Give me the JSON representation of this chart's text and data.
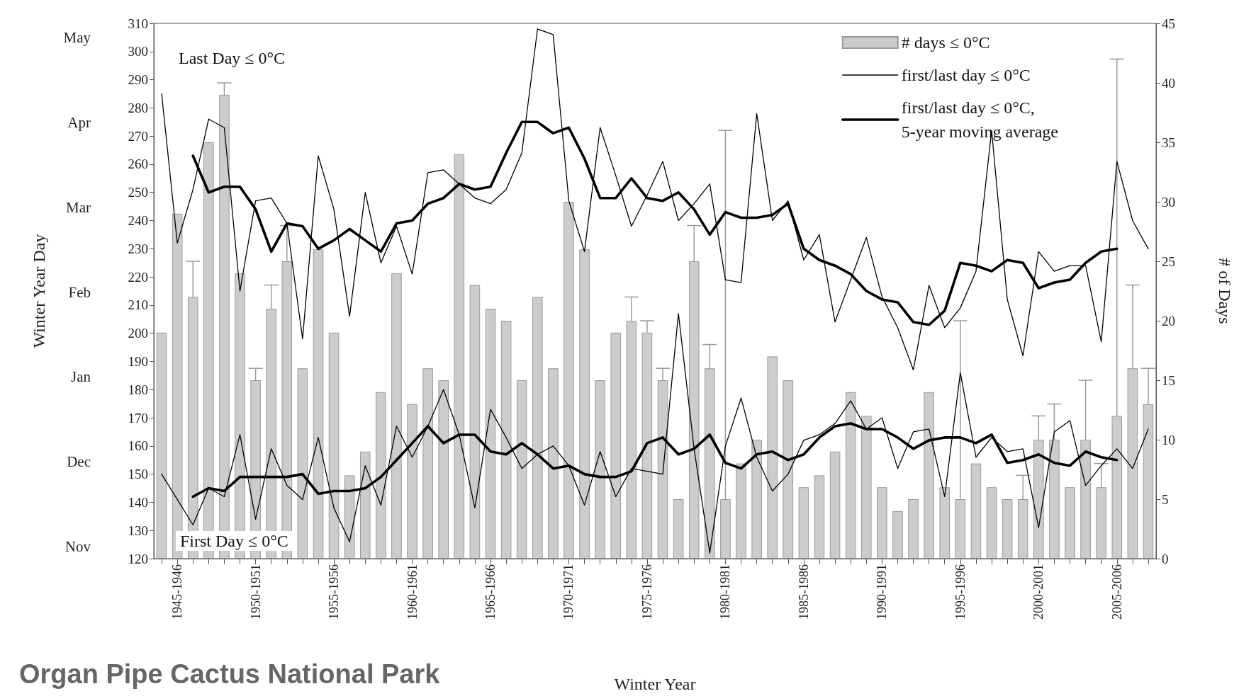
{
  "chart_data": {
    "type": "bar",
    "title": "Organ Pipe Cactus National Park",
    "xlabel": "Winter Year",
    "ylabel": "Winter Year Day",
    "y2label": "# of Days",
    "annotations": [
      "Last Day ≤ 0°C",
      "First Day ≤ 0°C",
      "May",
      "Apr",
      "Mar",
      "Feb",
      "Jan",
      "Dec",
      "Nov"
    ],
    "categories": [
      null,
      "1945-1946",
      null,
      null,
      null,
      null,
      "1950-1951",
      null,
      null,
      null,
      null,
      "1955-1956",
      null,
      null,
      null,
      null,
      "1960-1961",
      null,
      null,
      null,
      null,
      "1965-1966",
      null,
      null,
      null,
      null,
      "1970-1971",
      null,
      null,
      null,
      null,
      "1975-1976",
      null,
      null,
      null,
      null,
      "1980-1981",
      null,
      null,
      null,
      null,
      "1985-1986",
      null,
      null,
      null,
      null,
      "1990-1991",
      null,
      null,
      null,
      null,
      "1995-1996",
      null,
      null,
      null,
      null,
      "2000-2001",
      null,
      null,
      null,
      null,
      "2005-2006",
      null,
      null
    ],
    "series": [
      {
        "name": "# days ≤ 0°C",
        "axis": "y2",
        "color": "#cccccc",
        "values": [
          19,
          29,
          22,
          35,
          39,
          24,
          15,
          21,
          25,
          16,
          26,
          19,
          7,
          9,
          14,
          24,
          13,
          16,
          15,
          34,
          23,
          21,
          20,
          15,
          22,
          16,
          30,
          26,
          15,
          19,
          20,
          19,
          15,
          5,
          25,
          16,
          5,
          8,
          10,
          17,
          15,
          6,
          7,
          9,
          14,
          12,
          6,
          4,
          5,
          14,
          6,
          5,
          8,
          6,
          5,
          5,
          10,
          10,
          6,
          10,
          6,
          12,
          16,
          13
        ],
        "errors": [
          null,
          null,
          [
            22,
            25
          ],
          null,
          [
            39,
            40
          ],
          null,
          [
            15,
            16
          ],
          [
            21,
            23
          ],
          [
            25,
            28
          ],
          null,
          null,
          null,
          null,
          null,
          null,
          null,
          null,
          null,
          null,
          null,
          null,
          null,
          null,
          null,
          null,
          null,
          null,
          null,
          null,
          null,
          [
            20,
            22
          ],
          [
            19,
            20
          ],
          [
            15,
            16
          ],
          null,
          [
            25,
            28
          ],
          [
            16,
            18
          ],
          [
            5,
            36
          ],
          null,
          null,
          null,
          null,
          null,
          null,
          null,
          null,
          null,
          null,
          null,
          null,
          null,
          null,
          [
            5,
            20
          ],
          null,
          null,
          null,
          [
            5,
            7
          ],
          [
            10,
            12
          ],
          [
            10,
            13
          ],
          null,
          [
            10,
            15
          ],
          [
            6,
            8
          ],
          [
            12,
            42
          ],
          [
            16,
            23
          ],
          [
            13,
            16
          ]
        ]
      },
      {
        "name": "first/last day ≤ 0°C",
        "type": "line",
        "color": "#000000",
        "values": [
          285,
          232,
          251,
          276,
          273,
          215,
          247,
          248,
          239,
          198,
          263,
          244,
          206,
          250,
          225,
          238,
          221,
          257,
          258,
          253,
          248,
          246,
          251,
          264,
          308,
          306,
          247,
          229,
          273,
          256,
          238,
          249,
          261,
          240,
          246,
          253,
          219,
          218,
          278,
          240,
          247,
          226,
          235,
          204,
          219,
          234,
          213,
          202,
          187,
          217,
          202,
          209,
          222,
          272,
          212,
          192,
          229,
          222,
          224,
          224,
          197,
          261,
          240,
          230
        ]
      },
      {
        "type": "line",
        "color": "#000000",
        "values": [
          150,
          141,
          132,
          145,
          142,
          164,
          134,
          159,
          146,
          141,
          163,
          138,
          126,
          153,
          139,
          167,
          156,
          167,
          180,
          164,
          138,
          173,
          163,
          152,
          157,
          160,
          153,
          139,
          158,
          142,
          152,
          151,
          150,
          207,
          159,
          122,
          160,
          177,
          156,
          144,
          150,
          162,
          164,
          168,
          176,
          166,
          170,
          152,
          165,
          166,
          142,
          186,
          156,
          163,
          158,
          159,
          131,
          165,
          169,
          146,
          153,
          159,
          152,
          166
        ]
      },
      {
        "name": "first/last day ≤ 0°C,\n5-year moving average",
        "type": "line",
        "color": "#000000",
        "values": [
          null,
          null,
          263,
          250,
          252,
          252,
          244,
          229,
          239,
          238,
          230,
          233,
          237,
          233,
          229,
          239,
          240,
          246,
          248,
          253,
          251,
          252,
          264,
          275,
          275,
          271,
          273,
          262,
          248,
          248,
          255,
          248,
          247,
          250,
          244,
          235,
          243,
          241,
          241,
          242,
          246,
          230,
          226,
          224,
          221,
          215,
          212,
          211,
          204,
          203,
          208,
          225,
          224,
          222,
          226,
          225,
          216,
          218,
          219,
          225,
          229,
          230,
          null,
          null
        ]
      },
      {
        "type": "line",
        "color": "#000000",
        "values": [
          null,
          null,
          142,
          145,
          144,
          149,
          149,
          149,
          149,
          150,
          143,
          144,
          144,
          145,
          149,
          155,
          161,
          167,
          161,
          164,
          164,
          158,
          157,
          161,
          157,
          152,
          153,
          150,
          149,
          149,
          151,
          161,
          163,
          157,
          159,
          164,
          154,
          152,
          157,
          158,
          155,
          157,
          163,
          167,
          168,
          166,
          166,
          163,
          159,
          162,
          163,
          163,
          161,
          164,
          154,
          155,
          157,
          154,
          153,
          158,
          156,
          155,
          null,
          null
        ]
      }
    ],
    "ylim": [
      120,
      310
    ],
    "yticks": [
      120,
      130,
      140,
      150,
      160,
      170,
      180,
      190,
      200,
      210,
      220,
      230,
      240,
      250,
      260,
      270,
      280,
      290,
      300,
      310
    ],
    "y2lim": [
      0,
      45
    ],
    "y2ticks": [
      0,
      5,
      10,
      15,
      20,
      25,
      30,
      35,
      40,
      45
    ],
    "legend": "top right",
    "marker": "none"
  }
}
